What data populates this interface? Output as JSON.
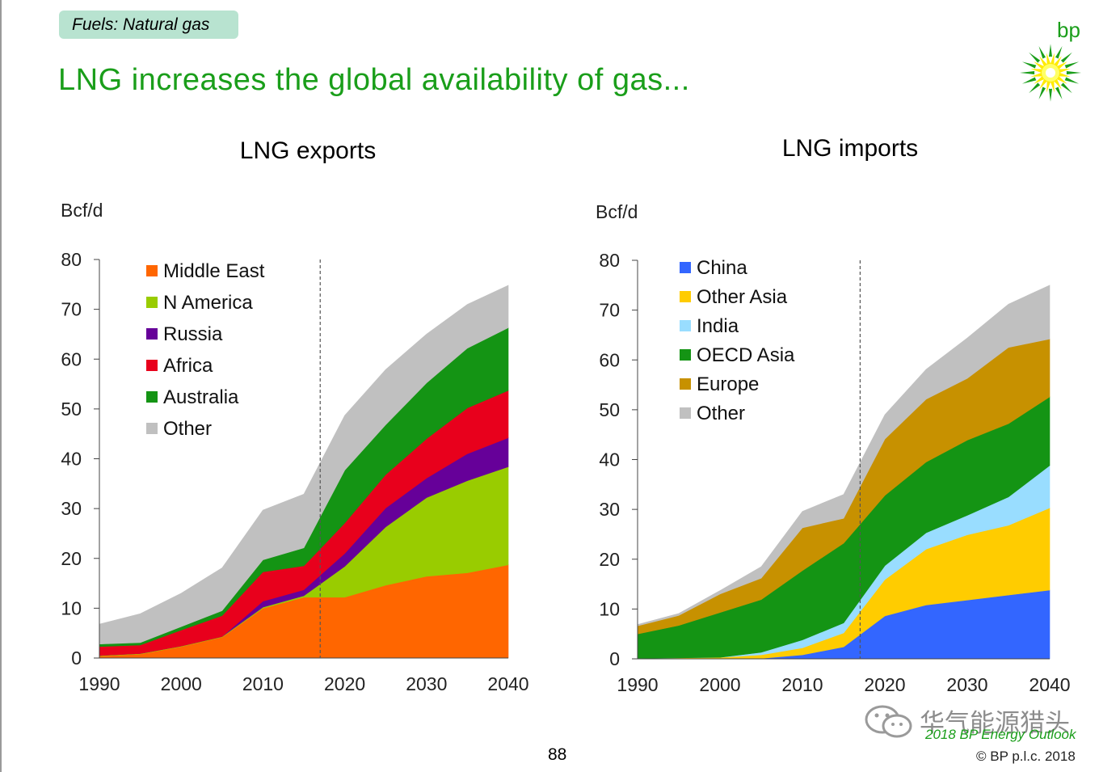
{
  "badge": "Fuels: Natural gas",
  "title": "LNG increases the global availability of gas...",
  "brand": {
    "name": "bp",
    "color": "#1a9e1a",
    "yellow": "#ffeb00"
  },
  "page_number": "88",
  "footer": {
    "watermark": "华气能源猎头",
    "source": "2018 BP Energy Outlook",
    "copyright": "© BP p.l.c. 2018"
  },
  "chart_data": [
    {
      "type": "area",
      "stacked": true,
      "title": "LNG exports",
      "ylabel": "Bcf/d",
      "xlabel": "",
      "ylim": [
        0,
        80
      ],
      "xlim": [
        1990,
        2040
      ],
      "yticks": [
        "0",
        "10",
        "20",
        "30",
        "40",
        "50",
        "60",
        "70",
        "80"
      ],
      "xticks": [
        "1990",
        "2000",
        "2010",
        "2020",
        "2030",
        "2040"
      ],
      "x": [
        1990,
        1995,
        2000,
        2005,
        2010,
        2015,
        2020,
        2025,
        2030,
        2035,
        2040
      ],
      "divider_year": 2017,
      "legend": "top-left",
      "series": [
        {
          "name": "Middle East",
          "color": "#ff6600",
          "values": [
            0.4,
            0.8,
            2.3,
            4.2,
            10.0,
            12.2,
            12.2,
            14.6,
            16.4,
            17.1,
            18.7
          ]
        },
        {
          "name": "N America",
          "color": "#99cc00",
          "values": [
            0.1,
            0.1,
            0.1,
            0.1,
            0.2,
            0.3,
            6.2,
            11.7,
            15.8,
            18.5,
            19.7
          ]
        },
        {
          "name": "Russia",
          "color": "#660099",
          "values": [
            0.0,
            0.0,
            0.0,
            0.0,
            1.2,
            1.2,
            2.6,
            3.8,
            3.9,
            5.4,
            5.8
          ]
        },
        {
          "name": "Africa",
          "color": "#e8001c",
          "values": [
            1.8,
            1.7,
            3.2,
            4.2,
            5.9,
            4.8,
            6.1,
            6.7,
            7.9,
            9.2,
            9.5
          ]
        },
        {
          "name": "Australia",
          "color": "#149414",
          "values": [
            0.5,
            0.5,
            0.7,
            1.0,
            2.4,
            3.6,
            10.6,
            10.0,
            11.2,
            12.0,
            12.6
          ]
        },
        {
          "name": "Other",
          "color": "#c0c0c0",
          "values": [
            4.0,
            5.8,
            6.7,
            8.6,
            10.0,
            10.8,
            11.0,
            11.1,
            9.8,
            8.8,
            8.5
          ]
        }
      ]
    },
    {
      "type": "area",
      "stacked": true,
      "title": "LNG imports",
      "ylabel": "Bcf/d",
      "xlabel": "",
      "ylim": [
        0,
        80
      ],
      "xlim": [
        1990,
        2040
      ],
      "yticks": [
        "0",
        "10",
        "20",
        "30",
        "40",
        "50",
        "60",
        "70",
        "80"
      ],
      "xticks": [
        "1990",
        "2000",
        "2010",
        "2020",
        "2030",
        "2040"
      ],
      "x": [
        1990,
        1995,
        2000,
        2005,
        2010,
        2015,
        2020,
        2025,
        2030,
        2035,
        2040
      ],
      "divider_year": 2017,
      "legend": "top-left",
      "series": [
        {
          "name": "China",
          "color": "#3366ff",
          "values": [
            0.0,
            0.0,
            0.0,
            0.1,
            0.8,
            2.4,
            8.6,
            10.8,
            11.8,
            12.8,
            13.8
          ]
        },
        {
          "name": "Other Asia",
          "color": "#ffcc00",
          "values": [
            0.1,
            0.2,
            0.3,
            0.7,
            1.4,
            2.8,
            7.3,
            11.2,
            13.1,
            14.0,
            16.5
          ]
        },
        {
          "name": "India",
          "color": "#99ddff",
          "values": [
            0.0,
            0.0,
            0.0,
            0.5,
            1.6,
            2.0,
            2.8,
            3.3,
            3.9,
            5.7,
            8.5
          ]
        },
        {
          "name": "OECD Asia",
          "color": "#149414",
          "values": [
            4.9,
            6.5,
            9.0,
            10.6,
            13.9,
            16.0,
            14.1,
            14.2,
            15.1,
            14.7,
            13.8
          ]
        },
        {
          "name": "Europe",
          "color": "#c79100",
          "values": [
            1.6,
            2.0,
            3.7,
            4.3,
            8.6,
            5.0,
            11.3,
            12.6,
            12.4,
            15.3,
            11.6
          ]
        },
        {
          "name": "Other",
          "color": "#c0c0c0",
          "values": [
            0.3,
            0.4,
            0.7,
            2.3,
            3.3,
            4.8,
            4.9,
            6.0,
            8.1,
            8.7,
            10.8
          ]
        }
      ]
    }
  ]
}
